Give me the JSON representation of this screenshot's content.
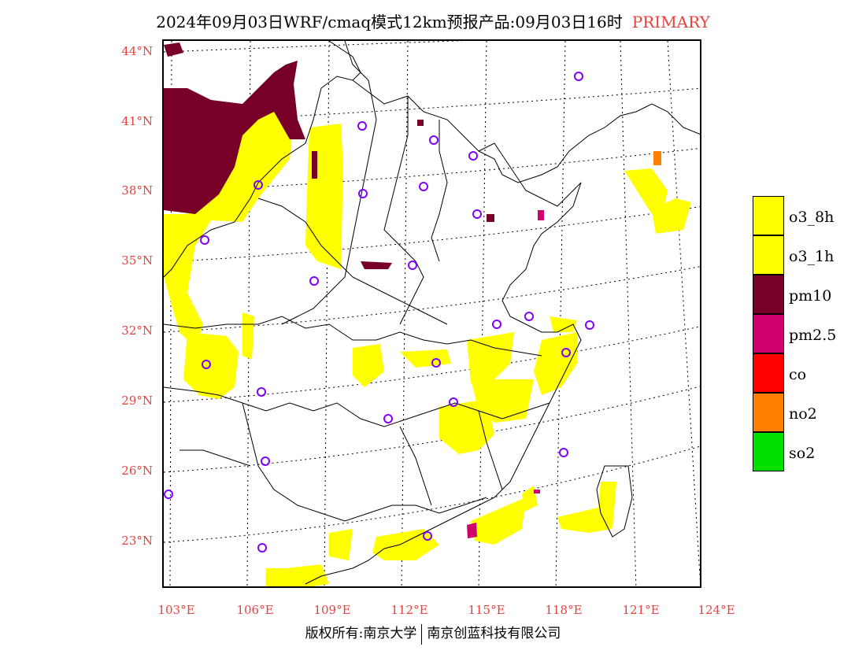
{
  "title": {
    "text": "2024年09月03日WRF/cmaq模式12km预报产品:09月03日16时",
    "tag": "PRIMARY"
  },
  "map": {
    "lat_labels": [
      "44°N",
      "41°N",
      "38°N",
      "35°N",
      "32°N",
      "29°N",
      "26°N",
      "23°N"
    ],
    "lon_labels": [
      "103°E",
      "106°E",
      "109°E",
      "112°E",
      "115°E",
      "118°E",
      "121°E",
      "124°E"
    ],
    "colors": {
      "o3_8h": "#ffff00",
      "pm10": "#780028",
      "pm25": "#d0006f",
      "no2": "#ff8000",
      "station": "#8000ff"
    }
  },
  "legend": [
    {
      "label": "o3_8h",
      "color": "#ffff00"
    },
    {
      "label": "o3_1h",
      "color": "#ffff00"
    },
    {
      "label": "pm10",
      "color": "#780028"
    },
    {
      "label": "pm2.5",
      "color": "#d0006f"
    },
    {
      "label": "co",
      "color": "#ff0000"
    },
    {
      "label": "no2",
      "color": "#ff8000"
    },
    {
      "label": "so2",
      "color": "#00e000"
    }
  ],
  "footer": {
    "left": "版权所有:南京大学",
    "right": "南京创蓝科技有限公司"
  }
}
